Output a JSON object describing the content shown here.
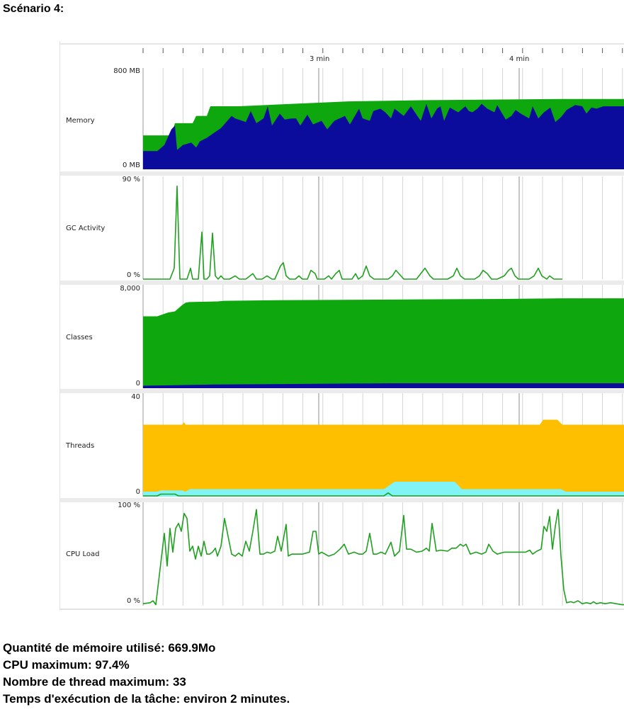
{
  "heading": "Scénario 4:",
  "time_axis": {
    "ticks": [
      "3 min",
      "4 min"
    ]
  },
  "colors": {
    "memory_used": "#0c0c9c",
    "memory_heap": "#0ea80e",
    "gc": "#20a020",
    "classes_loaded": "#0ea80e",
    "classes_unloaded": "#0c0c9c",
    "threads_live": "#fdbf00",
    "threads_daemon": "#80f4f4",
    "cpu": "#20a020"
  },
  "panels": [
    {
      "name": "memory",
      "label": "Memory",
      "max_label": "800 MB",
      "min_label": "0 MB"
    },
    {
      "name": "gc",
      "label": "GC Activity",
      "max_label": "90 %",
      "min_label": "0 %"
    },
    {
      "name": "classes",
      "label": "Classes",
      "max_label": "8,000",
      "min_label": "0"
    },
    {
      "name": "threads",
      "label": "Threads",
      "max_label": "40",
      "min_label": "0"
    },
    {
      "name": "cpu",
      "label": "CPU Load",
      "max_label": "100 %",
      "min_label": "0 %"
    }
  ],
  "chart_data": {
    "type": "area",
    "x_unit": "time",
    "x_ticks": [
      "3 min",
      "4 min"
    ],
    "memory": {
      "ylim": [
        0,
        800
      ],
      "heap_mb": [
        [
          0,
          280
        ],
        [
          40,
          280
        ],
        [
          45,
          380
        ],
        [
          55,
          380
        ],
        [
          70,
          380
        ],
        [
          75,
          440
        ],
        [
          80,
          440
        ],
        [
          90,
          440
        ],
        [
          95,
          520
        ],
        [
          135,
          520
        ],
        [
          290,
          560
        ],
        [
          400,
          570
        ],
        [
          590,
          580
        ],
        [
          680,
          580
        ]
      ],
      "used_mb": [
        [
          0,
          150
        ],
        [
          20,
          150
        ],
        [
          30,
          200
        ],
        [
          40,
          330
        ],
        [
          45,
          360
        ],
        [
          48,
          160
        ],
        [
          56,
          200
        ],
        [
          68,
          220
        ],
        [
          75,
          180
        ],
        [
          80,
          230
        ],
        [
          90,
          260
        ],
        [
          110,
          340
        ],
        [
          125,
          440
        ],
        [
          130,
          420
        ],
        [
          145,
          390
        ],
        [
          152,
          480
        ],
        [
          160,
          380
        ],
        [
          170,
          420
        ],
        [
          176,
          520
        ],
        [
          182,
          360
        ],
        [
          193,
          460
        ],
        [
          200,
          410
        ],
        [
          210,
          420
        ],
        [
          216,
          420
        ],
        [
          222,
          360
        ],
        [
          232,
          450
        ],
        [
          240,
          370
        ],
        [
          252,
          400
        ],
        [
          260,
          330
        ],
        [
          270,
          400
        ],
        [
          285,
          440
        ],
        [
          292,
          370
        ],
        [
          305,
          500
        ],
        [
          310,
          420
        ],
        [
          320,
          400
        ],
        [
          325,
          480
        ],
        [
          335,
          500
        ],
        [
          342,
          470
        ],
        [
          350,
          420
        ],
        [
          355,
          500
        ],
        [
          368,
          440
        ],
        [
          378,
          520
        ],
        [
          385,
          460
        ],
        [
          392,
          400
        ],
        [
          400,
          540
        ],
        [
          407,
          420
        ],
        [
          415,
          500
        ],
        [
          420,
          520
        ],
        [
          425,
          400
        ],
        [
          433,
          510
        ],
        [
          445,
          470
        ],
        [
          455,
          520
        ],
        [
          460,
          480
        ],
        [
          465,
          470
        ],
        [
          472,
          500
        ],
        [
          478,
          540
        ],
        [
          486,
          500
        ],
        [
          496,
          470
        ],
        [
          500,
          530
        ],
        [
          512,
          410
        ],
        [
          520,
          440
        ],
        [
          526,
          490
        ],
        [
          533,
          460
        ],
        [
          545,
          420
        ],
        [
          550,
          520
        ],
        [
          558,
          420
        ],
        [
          566,
          470
        ],
        [
          575,
          510
        ],
        [
          582,
          390
        ],
        [
          590,
          430
        ],
        [
          598,
          490
        ],
        [
          610,
          530
        ],
        [
          620,
          520
        ],
        [
          626,
          460
        ],
        [
          633,
          510
        ],
        [
          640,
          500
        ],
        [
          650,
          520
        ],
        [
          660,
          520
        ],
        [
          670,
          520
        ],
        [
          680,
          520
        ]
      ]
    },
    "gc_activity": {
      "ylim": [
        0,
        90
      ],
      "values": [
        [
          0,
          0
        ],
        [
          38,
          0
        ],
        [
          44,
          10
        ],
        [
          48,
          85
        ],
        [
          52,
          0
        ],
        [
          58,
          0
        ],
        [
          62,
          0
        ],
        [
          67,
          10
        ],
        [
          70,
          0
        ],
        [
          75,
          0
        ],
        [
          78,
          0
        ],
        [
          83,
          43
        ],
        [
          86,
          0
        ],
        [
          90,
          0
        ],
        [
          94,
          3
        ],
        [
          98,
          42
        ],
        [
          102,
          3
        ],
        [
          106,
          0
        ],
        [
          110,
          3
        ],
        [
          114,
          0
        ],
        [
          122,
          0
        ],
        [
          130,
          3
        ],
        [
          136,
          0
        ],
        [
          145,
          0
        ],
        [
          155,
          5
        ],
        [
          160,
          0
        ],
        [
          168,
          0
        ],
        [
          175,
          3
        ],
        [
          182,
          0
        ],
        [
          186,
          0
        ],
        [
          194,
          12
        ],
        [
          198,
          15
        ],
        [
          202,
          3
        ],
        [
          207,
          0
        ],
        [
          211,
          0
        ],
        [
          215,
          0
        ],
        [
          220,
          3
        ],
        [
          225,
          0
        ],
        [
          232,
          0
        ],
        [
          237,
          8
        ],
        [
          243,
          5
        ],
        [
          246,
          0
        ],
        [
          250,
          0
        ],
        [
          256,
          0
        ],
        [
          262,
          3
        ],
        [
          266,
          0
        ],
        [
          272,
          5
        ],
        [
          277,
          8
        ],
        [
          281,
          0
        ],
        [
          287,
          0
        ],
        [
          295,
          0
        ],
        [
          300,
          5
        ],
        [
          304,
          0
        ],
        [
          310,
          3
        ],
        [
          315,
          12
        ],
        [
          320,
          3
        ],
        [
          326,
          0
        ],
        [
          331,
          0
        ],
        [
          338,
          0
        ],
        [
          346,
          0
        ],
        [
          352,
          3
        ],
        [
          357,
          8
        ],
        [
          364,
          3
        ],
        [
          368,
          0
        ],
        [
          372,
          0
        ],
        [
          378,
          0
        ],
        [
          386,
          0
        ],
        [
          392,
          5
        ],
        [
          398,
          10
        ],
        [
          405,
          3
        ],
        [
          410,
          0
        ],
        [
          415,
          0
        ],
        [
          422,
          0
        ],
        [
          430,
          0
        ],
        [
          438,
          3
        ],
        [
          443,
          10
        ],
        [
          448,
          3
        ],
        [
          454,
          0
        ],
        [
          460,
          0
        ],
        [
          468,
          0
        ],
        [
          475,
          3
        ],
        [
          480,
          8
        ],
        [
          486,
          5
        ],
        [
          492,
          0
        ],
        [
          500,
          0
        ],
        [
          510,
          3
        ],
        [
          516,
          8
        ],
        [
          520,
          10
        ],
        [
          525,
          3
        ],
        [
          530,
          0
        ],
        [
          536,
          0
        ],
        [
          545,
          0
        ],
        [
          552,
          3
        ],
        [
          558,
          10
        ],
        [
          563,
          3
        ],
        [
          570,
          0
        ],
        [
          574,
          3
        ],
        [
          580,
          0
        ],
        [
          586,
          0
        ],
        [
          592,
          0
        ]
      ]
    },
    "classes": {
      "ylim": [
        0,
        8000
      ],
      "loaded": [
        [
          0,
          5800
        ],
        [
          20,
          5800
        ],
        [
          25,
          5900
        ],
        [
          35,
          6100
        ],
        [
          45,
          6200
        ],
        [
          55,
          6700
        ],
        [
          60,
          6900
        ],
        [
          65,
          6950
        ],
        [
          105,
          7000
        ],
        [
          115,
          7050
        ],
        [
          190,
          7100
        ],
        [
          350,
          7150
        ],
        [
          510,
          7200
        ],
        [
          590,
          7250
        ],
        [
          680,
          7250
        ]
      ],
      "unloaded": [
        [
          0,
          200
        ],
        [
          100,
          300
        ],
        [
          350,
          400
        ],
        [
          680,
          400
        ]
      ]
    },
    "threads": {
      "ylim": [
        0,
        40
      ],
      "live": [
        [
          0,
          29
        ],
        [
          55,
          29
        ],
        [
          58,
          30
        ],
        [
          60,
          29
        ],
        [
          560,
          29
        ],
        [
          565,
          31
        ],
        [
          585,
          31
        ],
        [
          592,
          29
        ],
        [
          680,
          29
        ]
      ],
      "daemon": [
        [
          0,
          2
        ],
        [
          20,
          2
        ],
        [
          25,
          2.5
        ],
        [
          55,
          2.5
        ],
        [
          60,
          2
        ],
        [
          66,
          3
        ],
        [
          110,
          3
        ],
        [
          340,
          3
        ],
        [
          350,
          5
        ],
        [
          355,
          6
        ],
        [
          440,
          6
        ],
        [
          450,
          3
        ],
        [
          590,
          3
        ],
        [
          597,
          2
        ],
        [
          680,
          2
        ]
      ],
      "max_threads": 33
    },
    "cpu_load": {
      "ylim": [
        0,
        100
      ],
      "values": [
        [
          0,
          2
        ],
        [
          10,
          3
        ],
        [
          14,
          5
        ],
        [
          18,
          1
        ],
        [
          30,
          73
        ],
        [
          34,
          40
        ],
        [
          38,
          78
        ],
        [
          42,
          54
        ],
        [
          46,
          78
        ],
        [
          50,
          83
        ],
        [
          54,
          75
        ],
        [
          58,
          93
        ],
        [
          62,
          88
        ],
        [
          66,
          55
        ],
        [
          70,
          60
        ],
        [
          74,
          47
        ],
        [
          78,
          60
        ],
        [
          82,
          50
        ],
        [
          86,
          65
        ],
        [
          90,
          52
        ],
        [
          94,
          52
        ],
        [
          98,
          54
        ],
        [
          102,
          58
        ],
        [
          105,
          50
        ],
        [
          110,
          60
        ],
        [
          115,
          88
        ],
        [
          120,
          70
        ],
        [
          125,
          52
        ],
        [
          130,
          50
        ],
        [
          135,
          53
        ],
        [
          140,
          50
        ],
        [
          145,
          65
        ],
        [
          150,
          55
        ],
        [
          155,
          75
        ],
        [
          160,
          97
        ],
        [
          165,
          52
        ],
        [
          170,
          52
        ],
        [
          175,
          54
        ],
        [
          180,
          53
        ],
        [
          186,
          55
        ],
        [
          190,
          70
        ],
        [
          195,
          55
        ],
        [
          202,
          82
        ],
        [
          205,
          50
        ],
        [
          210,
          52
        ],
        [
          225,
          52
        ],
        [
          235,
          54
        ],
        [
          240,
          75
        ],
        [
          244,
          75
        ],
        [
          248,
          52
        ],
        [
          252,
          54
        ],
        [
          262,
          50
        ],
        [
          270,
          52
        ],
        [
          278,
          57
        ],
        [
          284,
          62
        ],
        [
          290,
          52
        ],
        [
          298,
          54
        ],
        [
          305,
          52
        ],
        [
          310,
          52
        ],
        [
          315,
          55
        ],
        [
          320,
          73
        ],
        [
          325,
          52
        ],
        [
          330,
          52
        ],
        [
          336,
          54
        ],
        [
          342,
          52
        ],
        [
          350,
          64
        ],
        [
          355,
          50
        ],
        [
          362,
          55
        ],
        [
          368,
          91
        ],
        [
          372,
          57
        ],
        [
          378,
          57
        ],
        [
          386,
          54
        ],
        [
          394,
          55
        ],
        [
          400,
          58
        ],
        [
          404,
          55
        ],
        [
          408,
          83
        ],
        [
          414,
          55
        ],
        [
          420,
          56
        ],
        [
          430,
          55
        ],
        [
          436,
          58
        ],
        [
          442,
          58
        ],
        [
          448,
          62
        ],
        [
          452,
          60
        ],
        [
          456,
          62
        ],
        [
          462,
          52
        ],
        [
          470,
          54
        ],
        [
          478,
          52
        ],
        [
          484,
          54
        ],
        [
          488,
          62
        ],
        [
          494,
          55
        ],
        [
          500,
          52
        ],
        [
          510,
          54
        ],
        [
          520,
          54
        ],
        [
          530,
          54
        ],
        [
          540,
          54
        ],
        [
          546,
          56
        ],
        [
          550,
          52
        ],
        [
          556,
          55
        ],
        [
          562,
          57
        ],
        [
          566,
          80
        ],
        [
          570,
          75
        ],
        [
          574,
          90
        ],
        [
          578,
          57
        ],
        [
          582,
          80
        ],
        [
          586,
          97
        ],
        [
          590,
          50
        ],
        [
          594,
          16
        ],
        [
          598,
          3
        ],
        [
          604,
          4
        ],
        [
          608,
          3
        ],
        [
          614,
          5
        ],
        [
          620,
          2
        ],
        [
          626,
          3
        ],
        [
          632,
          2
        ],
        [
          636,
          4
        ],
        [
          640,
          2
        ],
        [
          646,
          3
        ],
        [
          652,
          2
        ],
        [
          660,
          3
        ],
        [
          668,
          2
        ],
        [
          676,
          1
        ],
        [
          680,
          1
        ]
      ]
    },
    "max_memory_mo": 669.9,
    "max_cpu_percent": 97.4,
    "task_duration": "environ 2 minutes"
  },
  "summary": [
    "Quantité de mémoire utilisé: 669.9Mo",
    "CPU maximum: 97.4%",
    "Nombre de thread maximum: 33",
    "Temps d'exécution de la tâche: environ 2 minutes."
  ]
}
